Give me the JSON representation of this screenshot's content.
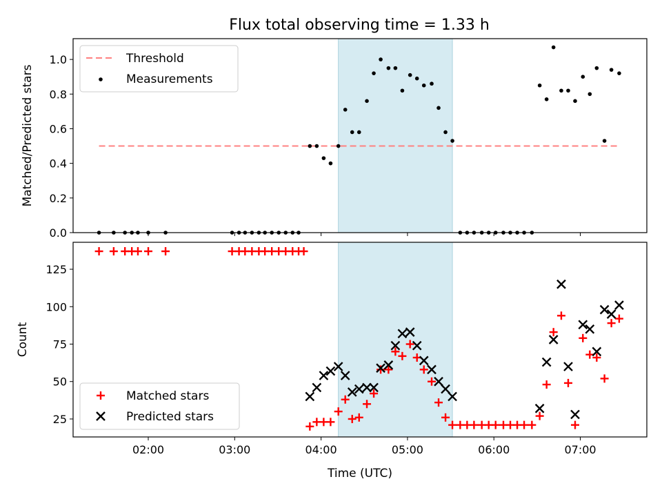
{
  "chart_data": [
    {
      "type": "scatter",
      "title": "Flux total observing time = 1.33 h",
      "xlabel": "",
      "ylabel": "Matched/Predicted stars",
      "ylim": [
        0,
        1.12
      ],
      "yticks": [
        "0.0",
        "0.2",
        "0.4",
        "0.6",
        "0.8",
        "1.0"
      ],
      "x_range_hours": [
        1.13,
        7.77
      ],
      "shaded_interval_hours": [
        4.2,
        5.52
      ],
      "legend_position": "top-left",
      "series": [
        {
          "name": "Threshold",
          "style": "dashed-line",
          "color": "#ff8080",
          "x": [
            1.43,
            7.46
          ],
          "y": [
            0.5,
            0.5
          ]
        },
        {
          "name": "Measurements",
          "style": "dot",
          "color": "#000000",
          "x": [
            1.43,
            1.6,
            1.73,
            1.81,
            1.88,
            2.0,
            2.2,
            2.97,
            3.05,
            3.12,
            3.2,
            3.28,
            3.35,
            3.43,
            3.51,
            3.59,
            3.67,
            3.74,
            3.87,
            3.95,
            4.03,
            4.11,
            4.2,
            4.28,
            4.36,
            4.44,
            4.53,
            4.61,
            4.69,
            4.78,
            4.86,
            4.94,
            5.03,
            5.11,
            5.19,
            5.28,
            5.36,
            5.44,
            5.52,
            5.61,
            5.69,
            5.77,
            5.86,
            5.94,
            6.02,
            6.11,
            6.19,
            6.27,
            6.35,
            6.44,
            6.53,
            6.61,
            6.69,
            6.78,
            6.86,
            6.94,
            7.03,
            7.11,
            7.19,
            7.28,
            7.36,
            7.45
          ],
          "y": [
            0,
            0,
            0,
            0,
            0,
            0,
            0,
            0,
            0,
            0,
            0,
            0,
            0,
            0,
            0,
            0,
            0,
            0,
            0.5,
            0.5,
            0.43,
            0.4,
            0.5,
            0.71,
            0.58,
            0.58,
            0.76,
            0.92,
            1.0,
            0.95,
            0.95,
            0.82,
            0.91,
            0.89,
            0.85,
            0.86,
            0.72,
            0.58,
            0.53,
            0,
            0,
            0,
            0,
            0,
            0,
            0,
            0,
            0,
            0,
            0,
            0.85,
            0.77,
            1.07,
            0.82,
            0.82,
            0.76,
            0.9,
            0.8,
            0.95,
            0.53,
            0.94,
            0.92
          ]
        }
      ]
    },
    {
      "type": "scatter",
      "title": "",
      "xlabel": "Time (UTC)",
      "ylabel": "Count",
      "ylim": [
        13,
        143
      ],
      "yticks": [
        "25",
        "50",
        "75",
        "100",
        "125"
      ],
      "xticks": [
        "02:00",
        "03:00",
        "04:00",
        "05:00",
        "06:00",
        "07:00"
      ],
      "x_range_hours": [
        1.13,
        7.77
      ],
      "shaded_interval_hours": [
        4.2,
        5.52
      ],
      "legend_position": "bottom-left",
      "series": [
        {
          "name": "Matched stars",
          "marker": "+",
          "color": "#ff0000",
          "x": [
            1.43,
            1.6,
            1.73,
            1.81,
            1.88,
            2.0,
            2.2,
            2.97,
            3.05,
            3.12,
            3.2,
            3.28,
            3.35,
            3.43,
            3.51,
            3.59,
            3.67,
            3.74,
            3.8,
            3.87,
            3.95,
            4.03,
            4.11,
            4.2,
            4.28,
            4.36,
            4.44,
            4.53,
            4.61,
            4.69,
            4.78,
            4.86,
            4.94,
            5.03,
            5.11,
            5.19,
            5.28,
            5.36,
            5.44,
            5.52,
            5.61,
            5.69,
            5.77,
            5.86,
            5.94,
            6.02,
            6.11,
            6.19,
            6.27,
            6.35,
            6.44,
            6.53,
            6.61,
            6.69,
            6.78,
            6.86,
            6.94,
            7.03,
            7.11,
            7.19,
            7.28,
            7.36,
            7.45
          ],
          "y": [
            137,
            137,
            137,
            137,
            137,
            137,
            137,
            137,
            137,
            137,
            137,
            137,
            137,
            137,
            137,
            137,
            137,
            137,
            137,
            20,
            23,
            23,
            23,
            30,
            38,
            25,
            26,
            35,
            42,
            58,
            58,
            70,
            67,
            75,
            66,
            58,
            50,
            36,
            26,
            21,
            21,
            21,
            21,
            21,
            21,
            21,
            21,
            21,
            21,
            21,
            21,
            27,
            48,
            83,
            94,
            49,
            21,
            79,
            68,
            66,
            52,
            89,
            92
          ]
        },
        {
          "name": "Predicted stars",
          "marker": "x",
          "color": "#000000",
          "x": [
            3.87,
            3.95,
            4.03,
            4.11,
            4.2,
            4.28,
            4.36,
            4.44,
            4.53,
            4.61,
            4.69,
            4.78,
            4.86,
            4.94,
            5.03,
            5.11,
            5.19,
            5.28,
            5.36,
            5.44,
            5.52,
            6.53,
            6.61,
            6.69,
            6.78,
            6.86,
            6.94,
            7.03,
            7.11,
            7.19,
            7.28,
            7.36,
            7.45
          ],
          "y": [
            40,
            46,
            54,
            57,
            60,
            54,
            43,
            45,
            46,
            46,
            59,
            61,
            74,
            82,
            83,
            74,
            64,
            58,
            50,
            45,
            40,
            32,
            63,
            78,
            115,
            60,
            28,
            88,
            85,
            70,
            98,
            95,
            101
          ]
        }
      ]
    }
  ]
}
